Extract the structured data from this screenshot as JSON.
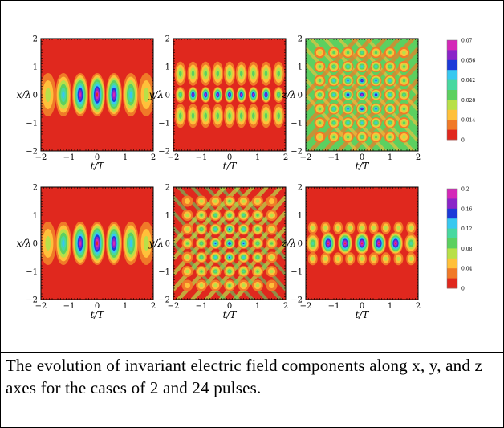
{
  "figure": {
    "caption": "The evolution of invariant electric field components along x, y, and z axes for the cases of 2 and 24 pulses.",
    "colors": {
      "scale": [
        "#e0281e",
        "#f07a28",
        "#ffc03a",
        "#b8e048",
        "#5cd060",
        "#48d8a0",
        "#38c8f0",
        "#1c3ad8",
        "#8a24c8",
        "#d428b8",
        "#e0281e"
      ]
    }
  },
  "chart_data": [
    {
      "type": "heatmap",
      "row": 1,
      "col": 1,
      "pattern": "x",
      "xlabel": "t/T",
      "ylabel": "x/λ",
      "xlim": [
        -2,
        2
      ],
      "ylim": [
        -2,
        2
      ],
      "xticks": [
        "−2",
        "−1",
        "0",
        "1",
        "2"
      ],
      "yticks": [
        "−2",
        "−1",
        "0",
        "1",
        "2"
      ],
      "value_range": [
        0,
        0.07
      ]
    },
    {
      "type": "heatmap",
      "row": 1,
      "col": 2,
      "pattern": "y",
      "xlabel": "t/T",
      "ylabel": "y/λ",
      "xlim": [
        -2,
        2
      ],
      "ylim": [
        -2,
        2
      ],
      "xticks": [
        "−2",
        "−1",
        "0",
        "1",
        "2"
      ],
      "yticks": [
        "−2",
        "−1",
        "0",
        "1",
        "2"
      ],
      "value_range": [
        0,
        0.07
      ]
    },
    {
      "type": "heatmap",
      "row": 1,
      "col": 3,
      "pattern": "z",
      "xlabel": "t/T",
      "ylabel": "z/λ",
      "xlim": [
        -2,
        2
      ],
      "ylim": [
        -2,
        2
      ],
      "xticks": [
        "−2",
        "−1",
        "0",
        "1",
        "2"
      ],
      "yticks": [
        "−2",
        "−1",
        "0",
        "1",
        "2"
      ],
      "value_range": [
        0,
        0.07
      ],
      "colorbar": {
        "ticks": [
          "0.07",
          "0.056",
          "0.042",
          "0.028",
          "0.014",
          "0"
        ],
        "values": [
          0.07,
          0.056,
          0.042,
          0.028,
          0.014,
          0
        ]
      }
    },
    {
      "type": "heatmap",
      "row": 2,
      "col": 1,
      "pattern": "x",
      "xlabel": "t/T",
      "ylabel": "x/λ",
      "xlim": [
        -2,
        2
      ],
      "ylim": [
        -2,
        2
      ],
      "xticks": [
        "−2",
        "−1",
        "0",
        "1",
        "2"
      ],
      "yticks": [
        "−2",
        "−1",
        "0",
        "1",
        "2"
      ],
      "value_range": [
        0,
        0.2
      ]
    },
    {
      "type": "heatmap",
      "row": 2,
      "col": 2,
      "pattern": "yz",
      "xlabel": "t/T",
      "ylabel": "y/λ",
      "xlim": [
        -2,
        2
      ],
      "ylim": [
        -2,
        2
      ],
      "xticks": [
        "−2",
        "−1",
        "0",
        "1",
        "2"
      ],
      "yticks": [
        "−2",
        "−1",
        "0",
        "1",
        "2"
      ],
      "value_range": [
        0,
        0.2
      ]
    },
    {
      "type": "heatmap",
      "row": 2,
      "col": 3,
      "pattern": "z2",
      "xlabel": "t/T",
      "ylabel": "z/λ",
      "xlim": [
        -2,
        2
      ],
      "ylim": [
        -2,
        2
      ],
      "xticks": [
        "−2",
        "−1",
        "0",
        "1",
        "2"
      ],
      "yticks": [
        "−2",
        "−1",
        "0",
        "1",
        "2"
      ],
      "value_range": [
        0,
        0.2
      ],
      "colorbar": {
        "ticks": [
          "0.2",
          "0.16",
          "0.12",
          "0.08",
          "0.04",
          "0"
        ],
        "values": [
          0.2,
          0.16,
          0.12,
          0.08,
          0.04,
          0
        ]
      }
    }
  ]
}
